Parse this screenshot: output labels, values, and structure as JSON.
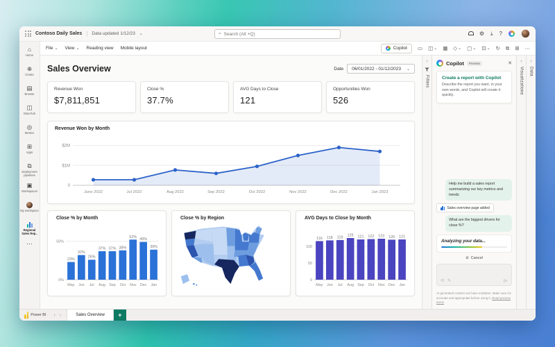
{
  "colors": {
    "accent_teal": "#0e7a5f",
    "plus_green": "#0e7a63",
    "bar_blue": "#2a72d8",
    "bar_indigo": "#4b44c0",
    "line_blue": "#2b62c9"
  },
  "icons": {
    "search": "⌕",
    "gear": "⚙",
    "download": "⤓",
    "help": "?",
    "caret": "⌄",
    "chev_left": "‹",
    "more": "⋯",
    "comment": "▭",
    "card": "◫",
    "grid": "▦",
    "diamond": "◇",
    "box": "▢",
    "boxdot": "⊡",
    "refresh": "↻",
    "copy": "⧉",
    "plusgrid": "⊞",
    "home": "⌂",
    "create": "⊕",
    "browse": "▤",
    "datahub": "◫",
    "metrics": "◎",
    "apps": "⊞",
    "pipelines": "⧉",
    "workspaces": "▣",
    "send": "⊳",
    "cancel": "⊘",
    "undo": "⟲",
    "pen": "✎",
    "plus": "+",
    "arrow_l": "‹",
    "arrow_r": "›",
    "close": "✕"
  },
  "topbar": {
    "app_title": "Contoso Daily Sales",
    "separator": "|",
    "data_updated": "Data updated 1/12/23",
    "search_placeholder": "Search (Alt +Q)"
  },
  "menubar": {
    "items": [
      {
        "label": "File"
      },
      {
        "label": "View"
      },
      {
        "label": "Reading view"
      },
      {
        "label": "Mobile layout"
      }
    ],
    "copilot_button": "Copilot"
  },
  "sidebar": {
    "items": [
      {
        "label": "Home"
      },
      {
        "label": "Create"
      },
      {
        "label": "Browse"
      },
      {
        "label": "Data hub"
      },
      {
        "label": "Metrics"
      },
      {
        "label": "Apps"
      },
      {
        "label": "Deployment pipelines"
      },
      {
        "label": "Workspaces"
      },
      {
        "label": "My workspace"
      },
      {
        "label": "Regional Sales Rep.."
      },
      {
        "label": ""
      }
    ]
  },
  "report": {
    "title": "Sales Overview",
    "date_label": "Date",
    "date_value": "06/01/2022 - 01/12/2023",
    "kpis": [
      {
        "label": "Revenue Won",
        "value": "$7,811,851"
      },
      {
        "label": "Close %",
        "value": "37.7%"
      },
      {
        "label": "AVG Days to Close",
        "value": "121"
      },
      {
        "label": "Opportunities Won",
        "value": "526"
      }
    ]
  },
  "chart_data": [
    {
      "type": "line",
      "title": "Revenue Won by Month",
      "x": [
        "June 2022",
        "Jul 2022",
        "Aug 2022",
        "Sep 2022",
        "Oct 2022",
        "Nov 2022",
        "Dec 2022",
        "Jan 2023"
      ],
      "values_millions_usd": [
        0.28,
        0.28,
        0.77,
        0.6,
        0.95,
        1.5,
        1.9,
        1.7
      ],
      "ylim": [
        0,
        2.3
      ],
      "grid": [
        {
          "v": 2,
          "label": "$2M"
        },
        {
          "v": 1,
          "label": "$1M"
        },
        {
          "v": 0,
          "label": "0"
        }
      ],
      "color": "#2b62c9",
      "area": true,
      "legend": "none"
    },
    {
      "type": "bar",
      "title": "Close % by Month",
      "categories": [
        "May",
        "Jun",
        "Jul",
        "Aug",
        "Sep",
        "Oct",
        "Nov",
        "Dec",
        "Jan"
      ],
      "values": [
        23,
        32,
        26,
        37,
        37,
        38,
        52,
        49,
        39
      ],
      "labels": [
        "23%",
        "32%",
        "26%",
        "37%",
        "37%",
        "38%",
        "52%",
        "49%",
        "39%"
      ],
      "ylim": [
        0,
        64
      ],
      "grid": [
        {
          "v": 50,
          "label": "50%"
        },
        {
          "v": 0,
          "label": "0%"
        }
      ],
      "color": "#2a72d8"
    },
    {
      "type": "choropleth",
      "title": "Close % by Region",
      "region": "United States",
      "palette": [
        "#16265e",
        "#2d55ae",
        "#4579cf",
        "#6e9ddf",
        "#9dbfed",
        "#c6daf5",
        "#b3cdf0"
      ],
      "note": "darker blue = higher close %, darkest: Washington, Texas; dark: California, Georgia"
    },
    {
      "type": "bar",
      "title": "AVG Days to Close by Month",
      "categories": [
        "May",
        "Jun",
        "Jul",
        "Aug",
        "Sep",
        "Oct",
        "Nov",
        "Dec",
        "Jan"
      ],
      "values": [
        116,
        118,
        119,
        125,
        121,
        122,
        123,
        120,
        121
      ],
      "labels": [
        "116",
        "118",
        "119",
        "125",
        "121",
        "122",
        "123",
        "120",
        "121"
      ],
      "ylim": [
        0,
        148
      ],
      "grid": [
        {
          "v": 100,
          "label": "100"
        },
        {
          "v": 50,
          "label": "50"
        },
        {
          "v": 0,
          "label": "0"
        }
      ],
      "color": "#4b44c0"
    }
  ],
  "panels": {
    "filters": "Filters",
    "visualizations": "Visualizations",
    "data": "Data"
  },
  "copilot": {
    "title": "Copilot",
    "badge": "Preview",
    "card_title": "Create a report with Copilot",
    "card_body": "Describe the report you want, in your own words, and Copilot will create it quickly.",
    "message_1": "Help me build a sales report summarizing our key metrics and trends",
    "chip": "Sales overview page added",
    "message_2": "What are the biggest drivers for close %?",
    "analyzing": "Analyzing your data...",
    "cancel": "Cancel",
    "disclaimer": "AI generated content can have mistakes. Make sure it's accurate and appropriate before using it. ",
    "terms_link": "Read preview terms"
  },
  "tabstrip": {
    "brand": "Power BI",
    "active_tab": "Sales Overview"
  }
}
